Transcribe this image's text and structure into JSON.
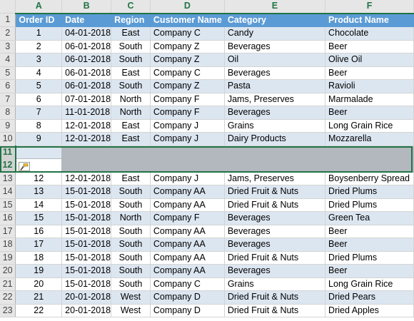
{
  "columns": [
    "A",
    "B",
    "C",
    "D",
    "E",
    "F"
  ],
  "header_row": {
    "row_number": "1",
    "cells": [
      "Order ID",
      "Date",
      "Region",
      "Customer Name",
      "Category",
      "Product Name"
    ]
  },
  "rows": [
    {
      "n": "2",
      "cells": [
        "1",
        "04-01-2018",
        "East",
        "Company C",
        "Candy",
        "Chocolate"
      ]
    },
    {
      "n": "3",
      "cells": [
        "2",
        "06-01-2018",
        "South",
        "Company Z",
        "Beverages",
        "Beer"
      ]
    },
    {
      "n": "4",
      "cells": [
        "3",
        "06-01-2018",
        "South",
        "Company Z",
        "Oil",
        "Olive Oil"
      ]
    },
    {
      "n": "5",
      "cells": [
        "4",
        "06-01-2018",
        "East",
        "Company C",
        "Beverages",
        "Beer"
      ]
    },
    {
      "n": "6",
      "cells": [
        "5",
        "06-01-2018",
        "South",
        "Company Z",
        "Pasta",
        "Ravioli"
      ]
    },
    {
      "n": "7",
      "cells": [
        "6",
        "07-01-2018",
        "North",
        "Company F",
        "Jams, Preserves",
        "Marmalade"
      ]
    },
    {
      "n": "8",
      "cells": [
        "7",
        "11-01-2018",
        "North",
        "Company F",
        "Beverages",
        "Beer"
      ]
    },
    {
      "n": "9",
      "cells": [
        "8",
        "12-01-2018",
        "East",
        "Company J",
        "Grains",
        "Long Grain Rice"
      ]
    },
    {
      "n": "10",
      "cells": [
        "9",
        "12-01-2018",
        "East",
        "Company J",
        "Dairy Products",
        "Mozzarella"
      ]
    },
    {
      "n": "11",
      "cells": [
        "",
        "",
        "",
        "",
        "",
        ""
      ],
      "selected": true
    },
    {
      "n": "12",
      "cells": [
        "",
        "",
        "",
        "",
        "",
        ""
      ],
      "selected": true
    },
    {
      "n": "13",
      "cells": [
        "12",
        "12-01-2018",
        "East",
        "Company J",
        "Jams, Preserves",
        "Boysenberry Spread"
      ]
    },
    {
      "n": "14",
      "cells": [
        "13",
        "15-01-2018",
        "South",
        "Company AA",
        "Dried Fruit & Nuts",
        "Dried Plums"
      ]
    },
    {
      "n": "15",
      "cells": [
        "14",
        "15-01-2018",
        "South",
        "Company AA",
        "Dried Fruit & Nuts",
        "Dried Plums"
      ]
    },
    {
      "n": "16",
      "cells": [
        "15",
        "15-01-2018",
        "North",
        "Company F",
        "Beverages",
        "Green Tea"
      ]
    },
    {
      "n": "17",
      "cells": [
        "16",
        "15-01-2018",
        "South",
        "Company AA",
        "Beverages",
        "Beer"
      ]
    },
    {
      "n": "18",
      "cells": [
        "17",
        "15-01-2018",
        "South",
        "Company AA",
        "Beverages",
        "Beer"
      ]
    },
    {
      "n": "19",
      "cells": [
        "18",
        "15-01-2018",
        "South",
        "Company AA",
        "Dried Fruit & Nuts",
        "Dried Plums"
      ]
    },
    {
      "n": "20",
      "cells": [
        "19",
        "15-01-2018",
        "South",
        "Company AA",
        "Beverages",
        "Beer"
      ]
    },
    {
      "n": "21",
      "cells": [
        "20",
        "15-01-2018",
        "South",
        "Company C",
        "Grains",
        "Long Grain Rice"
      ]
    },
    {
      "n": "22",
      "cells": [
        "21",
        "20-01-2018",
        "West",
        "Company D",
        "Dried Fruit & Nuts",
        "Dried Pears"
      ]
    },
    {
      "n": "23",
      "cells": [
        "22",
        "20-01-2018",
        "West",
        "Company D",
        "Dried Fruit & Nuts",
        "Dried Apples"
      ]
    }
  ],
  "icons": {
    "format_painter": "paintbrush-icon"
  },
  "colors": {
    "accent_green": "#217346",
    "table_header_blue": "#5b9bd5",
    "band_light_blue": "#dce6f1",
    "selection_gray": "#b3b8bf"
  }
}
